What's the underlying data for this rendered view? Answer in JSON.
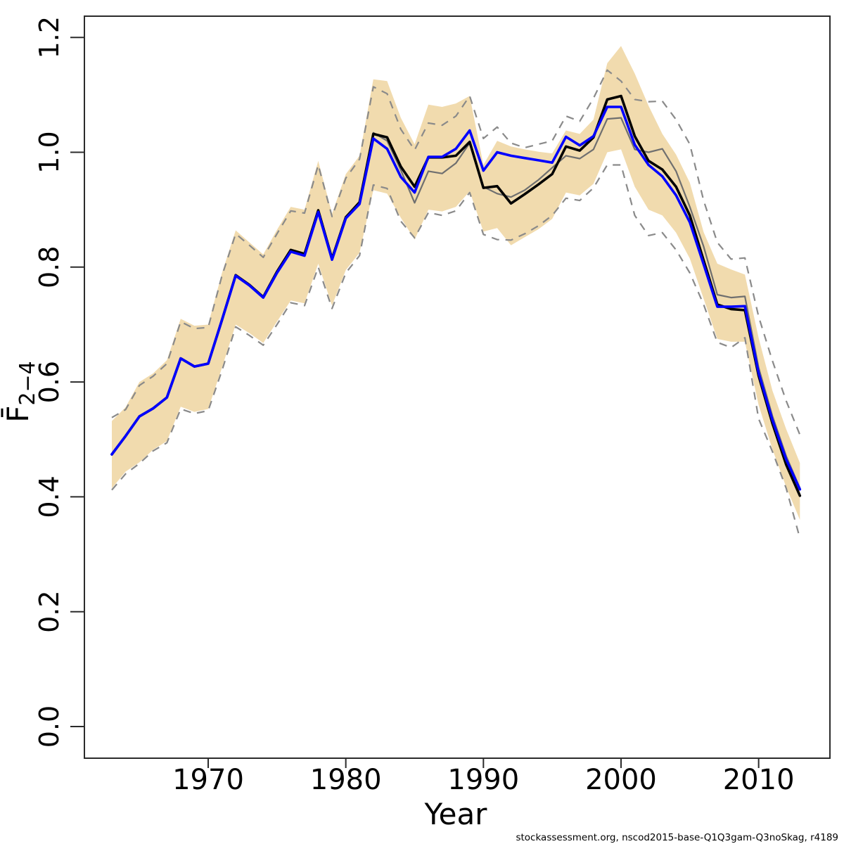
{
  "figure": {
    "xlabel": "Year",
    "ylabel_main": "F̄",
    "ylabel_sub": "2−4",
    "footer": "stockassessment.org, nscod2015-base-Q1Q3gam-Q3noSkag, r4189",
    "colors": {
      "band": "#f1dbae",
      "blue_line": "#0000ff",
      "black_line": "#000000",
      "gray_line": "#6f6f6f",
      "dashed_ci": "#8a8a8a",
      "axis": "#2b2b2b"
    }
  },
  "chart_data": {
    "type": "line",
    "title": "",
    "xlabel": "Year",
    "ylabel": "Fbar(2-4)",
    "xlim": [
      1961.5,
      2015.2
    ],
    "ylim": [
      -0.06,
      1.24
    ],
    "grid": false,
    "legend": "none",
    "xticks": [
      "1970",
      "1980",
      "1990",
      "2000",
      "2010"
    ],
    "xtick_values": [
      1970,
      1980,
      1990,
      2000,
      2010
    ],
    "yticks": [
      "0.0",
      "0.2",
      "0.4",
      "0.6",
      "0.8",
      "1.0",
      "1.2"
    ],
    "ytick_values": [
      0.0,
      0.2,
      0.4,
      0.6,
      0.8,
      1.0,
      1.2
    ],
    "x": [
      1963,
      1964,
      1965,
      1966,
      1967,
      1968,
      1969,
      1970,
      1971,
      1972,
      1973,
      1974,
      1975,
      1976,
      1977,
      1978,
      1979,
      1980,
      1981,
      1982,
      1983,
      1984,
      1985,
      1986,
      1987,
      1988,
      1989,
      1990,
      1991,
      1992,
      1993,
      1994,
      1995,
      1996,
      1997,
      1998,
      1999,
      2000,
      2001,
      2002,
      2003,
      2004,
      2005,
      2006,
      2007,
      2008,
      2009,
      2010,
      2011,
      2012,
      2013
    ],
    "series": [
      {
        "name": "blue_run_mean",
        "style": "solid",
        "color": "#0000ff",
        "width": 3.6,
        "values": [
          0.474,
          0.506,
          0.54,
          0.554,
          0.573,
          0.641,
          0.627,
          0.632,
          0.708,
          0.785,
          0.768,
          0.747,
          0.79,
          0.827,
          0.82,
          0.896,
          0.813,
          0.885,
          0.91,
          1.024,
          1.006,
          0.957,
          0.93,
          0.992,
          0.992,
          1.006,
          1.038,
          0.968,
          1.0,
          0.994,
          0.99,
          0.986,
          0.982,
          1.027,
          1.012,
          1.028,
          1.079,
          1.079,
          1.013,
          0.978,
          0.958,
          0.925,
          0.878,
          0.805,
          0.731,
          0.731,
          0.732,
          0.616,
          0.534,
          0.465,
          0.413
        ]
      },
      {
        "name": "black_run_mean",
        "style": "solid",
        "color": "#000000",
        "width": 3.6,
        "values": [
          0.474,
          0.506,
          0.54,
          0.554,
          0.573,
          0.641,
          0.627,
          0.632,
          0.708,
          0.786,
          0.769,
          0.748,
          0.792,
          0.83,
          0.823,
          0.899,
          0.815,
          0.887,
          0.913,
          1.032,
          1.026,
          0.975,
          0.94,
          0.991,
          0.991,
          0.994,
          1.018,
          0.938,
          0.941,
          0.911,
          0.927,
          0.944,
          0.962,
          1.01,
          1.003,
          1.026,
          1.092,
          1.098,
          1.028,
          0.985,
          0.97,
          0.94,
          0.89,
          0.812,
          0.735,
          0.727,
          0.725,
          0.611,
          0.528,
          0.456,
          0.402
        ]
      },
      {
        "name": "gray_run_mean",
        "style": "solid",
        "color": "#6f6f6f",
        "width": 2.2,
        "values": [
          0.474,
          0.506,
          0.54,
          0.554,
          0.573,
          0.641,
          0.627,
          0.632,
          0.708,
          0.786,
          0.769,
          0.748,
          0.792,
          0.828,
          0.82,
          0.895,
          0.813,
          0.885,
          0.911,
          1.034,
          1.02,
          0.969,
          0.912,
          0.967,
          0.963,
          0.981,
          1.016,
          0.94,
          0.928,
          0.922,
          0.934,
          0.952,
          0.973,
          0.994,
          0.989,
          1.005,
          1.058,
          1.06,
          1.005,
          1.0,
          1.006,
          0.967,
          0.905,
          0.836,
          0.752,
          0.747,
          0.749,
          0.625,
          0.541,
          0.471,
          0.415
        ]
      },
      {
        "name": "dashed_ci_upper",
        "style": "dashed",
        "color": "#8a8a8a",
        "width": 2.2,
        "values": [
          0.538,
          0.552,
          0.594,
          0.61,
          0.632,
          0.705,
          0.693,
          0.695,
          0.785,
          0.858,
          0.838,
          0.817,
          0.858,
          0.898,
          0.894,
          0.978,
          0.888,
          0.955,
          0.988,
          1.114,
          1.102,
          1.04,
          1.004,
          1.051,
          1.047,
          1.063,
          1.098,
          1.024,
          1.044,
          1.016,
          1.008,
          1.014,
          1.02,
          1.063,
          1.054,
          1.094,
          1.143,
          1.124,
          1.092,
          1.088,
          1.089,
          1.057,
          1.014,
          0.916,
          0.843,
          0.814,
          0.816,
          0.714,
          0.637,
          0.567,
          0.508
        ]
      },
      {
        "name": "dashed_ci_lower",
        "style": "dashed",
        "color": "#8a8a8a",
        "width": 2.2,
        "values": [
          0.412,
          0.44,
          0.458,
          0.48,
          0.494,
          0.553,
          0.545,
          0.55,
          0.62,
          0.696,
          0.681,
          0.664,
          0.7,
          0.738,
          0.733,
          0.8,
          0.728,
          0.79,
          0.82,
          0.943,
          0.937,
          0.88,
          0.851,
          0.895,
          0.89,
          0.898,
          0.93,
          0.857,
          0.848,
          0.847,
          0.858,
          0.872,
          0.89,
          0.92,
          0.916,
          0.938,
          0.978,
          0.978,
          0.89,
          0.855,
          0.86,
          0.83,
          0.79,
          0.735,
          0.669,
          0.66,
          0.677,
          0.536,
          0.479,
          0.415,
          0.328
        ]
      }
    ],
    "band": {
      "name": "confidence_band",
      "color": "#f1dbae",
      "upper": [
        0.532,
        0.556,
        0.6,
        0.615,
        0.638,
        0.71,
        0.698,
        0.7,
        0.79,
        0.864,
        0.843,
        0.822,
        0.865,
        0.905,
        0.9,
        0.985,
        0.893,
        0.962,
        0.994,
        1.127,
        1.124,
        1.06,
        1.014,
        1.083,
        1.079,
        1.085,
        1.098,
        0.978,
        1.02,
        1.01,
        1.005,
        1.001,
        0.998,
        1.038,
        1.032,
        1.057,
        1.155,
        1.185,
        1.137,
        1.081,
        1.032,
        0.996,
        0.947,
        0.861,
        0.806,
        0.796,
        0.787,
        0.677,
        0.585,
        0.518,
        0.459
      ],
      "lower": [
        0.415,
        0.444,
        0.46,
        0.482,
        0.497,
        0.557,
        0.548,
        0.553,
        0.625,
        0.7,
        0.685,
        0.668,
        0.705,
        0.742,
        0.737,
        0.806,
        0.733,
        0.795,
        0.825,
        0.934,
        0.928,
        0.886,
        0.848,
        0.9,
        0.897,
        0.905,
        0.932,
        0.862,
        0.868,
        0.838,
        0.852,
        0.866,
        0.884,
        0.93,
        0.925,
        0.945,
        1.0,
        1.005,
        0.94,
        0.9,
        0.89,
        0.86,
        0.815,
        0.745,
        0.675,
        0.67,
        0.67,
        0.56,
        0.483,
        0.417,
        0.36
      ]
    },
    "footer": "stockassessment.org, nscod2015-base-Q1Q3gam-Q3noSkag, r4189"
  }
}
